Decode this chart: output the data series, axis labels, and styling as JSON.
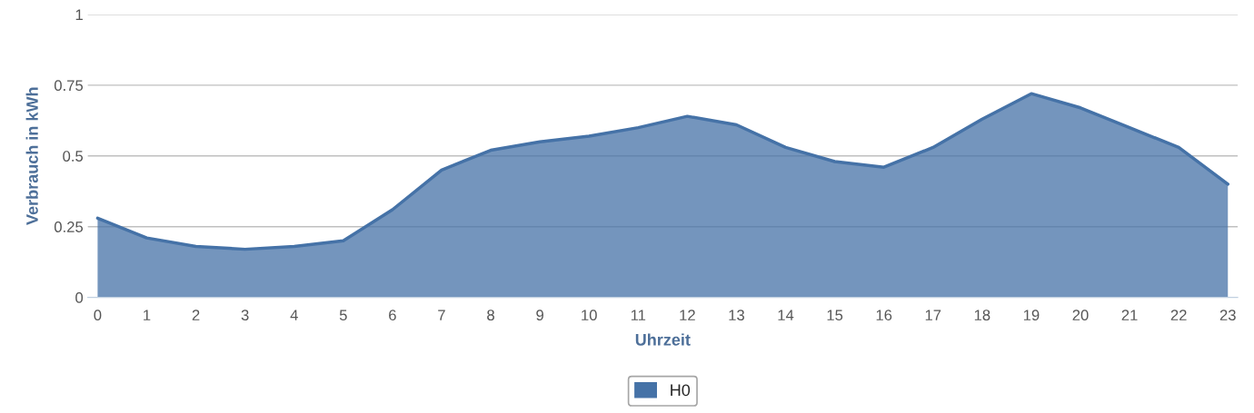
{
  "chart_data": {
    "type": "area",
    "xlabel": "Uhrzeit",
    "ylabel": "Verbrauch in kWh",
    "x": [
      0,
      1,
      2,
      3,
      4,
      5,
      6,
      7,
      8,
      9,
      10,
      11,
      12,
      13,
      14,
      15,
      16,
      17,
      18,
      19,
      20,
      21,
      22,
      23
    ],
    "series": [
      {
        "name": "H0",
        "color": "#4572a7",
        "values": [
          0.28,
          0.21,
          0.18,
          0.17,
          0.18,
          0.2,
          0.31,
          0.45,
          0.52,
          0.55,
          0.57,
          0.6,
          0.64,
          0.61,
          0.53,
          0.48,
          0.46,
          0.53,
          0.63,
          0.72,
          0.67,
          0.6,
          0.53,
          0.4
        ]
      }
    ],
    "xlim": [
      -0.2,
      23.2
    ],
    "xticks": [
      0,
      1,
      2,
      3,
      4,
      5,
      6,
      7,
      8,
      9,
      10,
      11,
      12,
      13,
      14,
      15,
      16,
      17,
      18,
      19,
      20,
      21,
      22,
      23
    ],
    "ylim": [
      0,
      1
    ],
    "yticks": [
      0,
      0.25,
      0.5,
      0.75,
      1
    ],
    "grid": "y",
    "legend": "bottom"
  }
}
